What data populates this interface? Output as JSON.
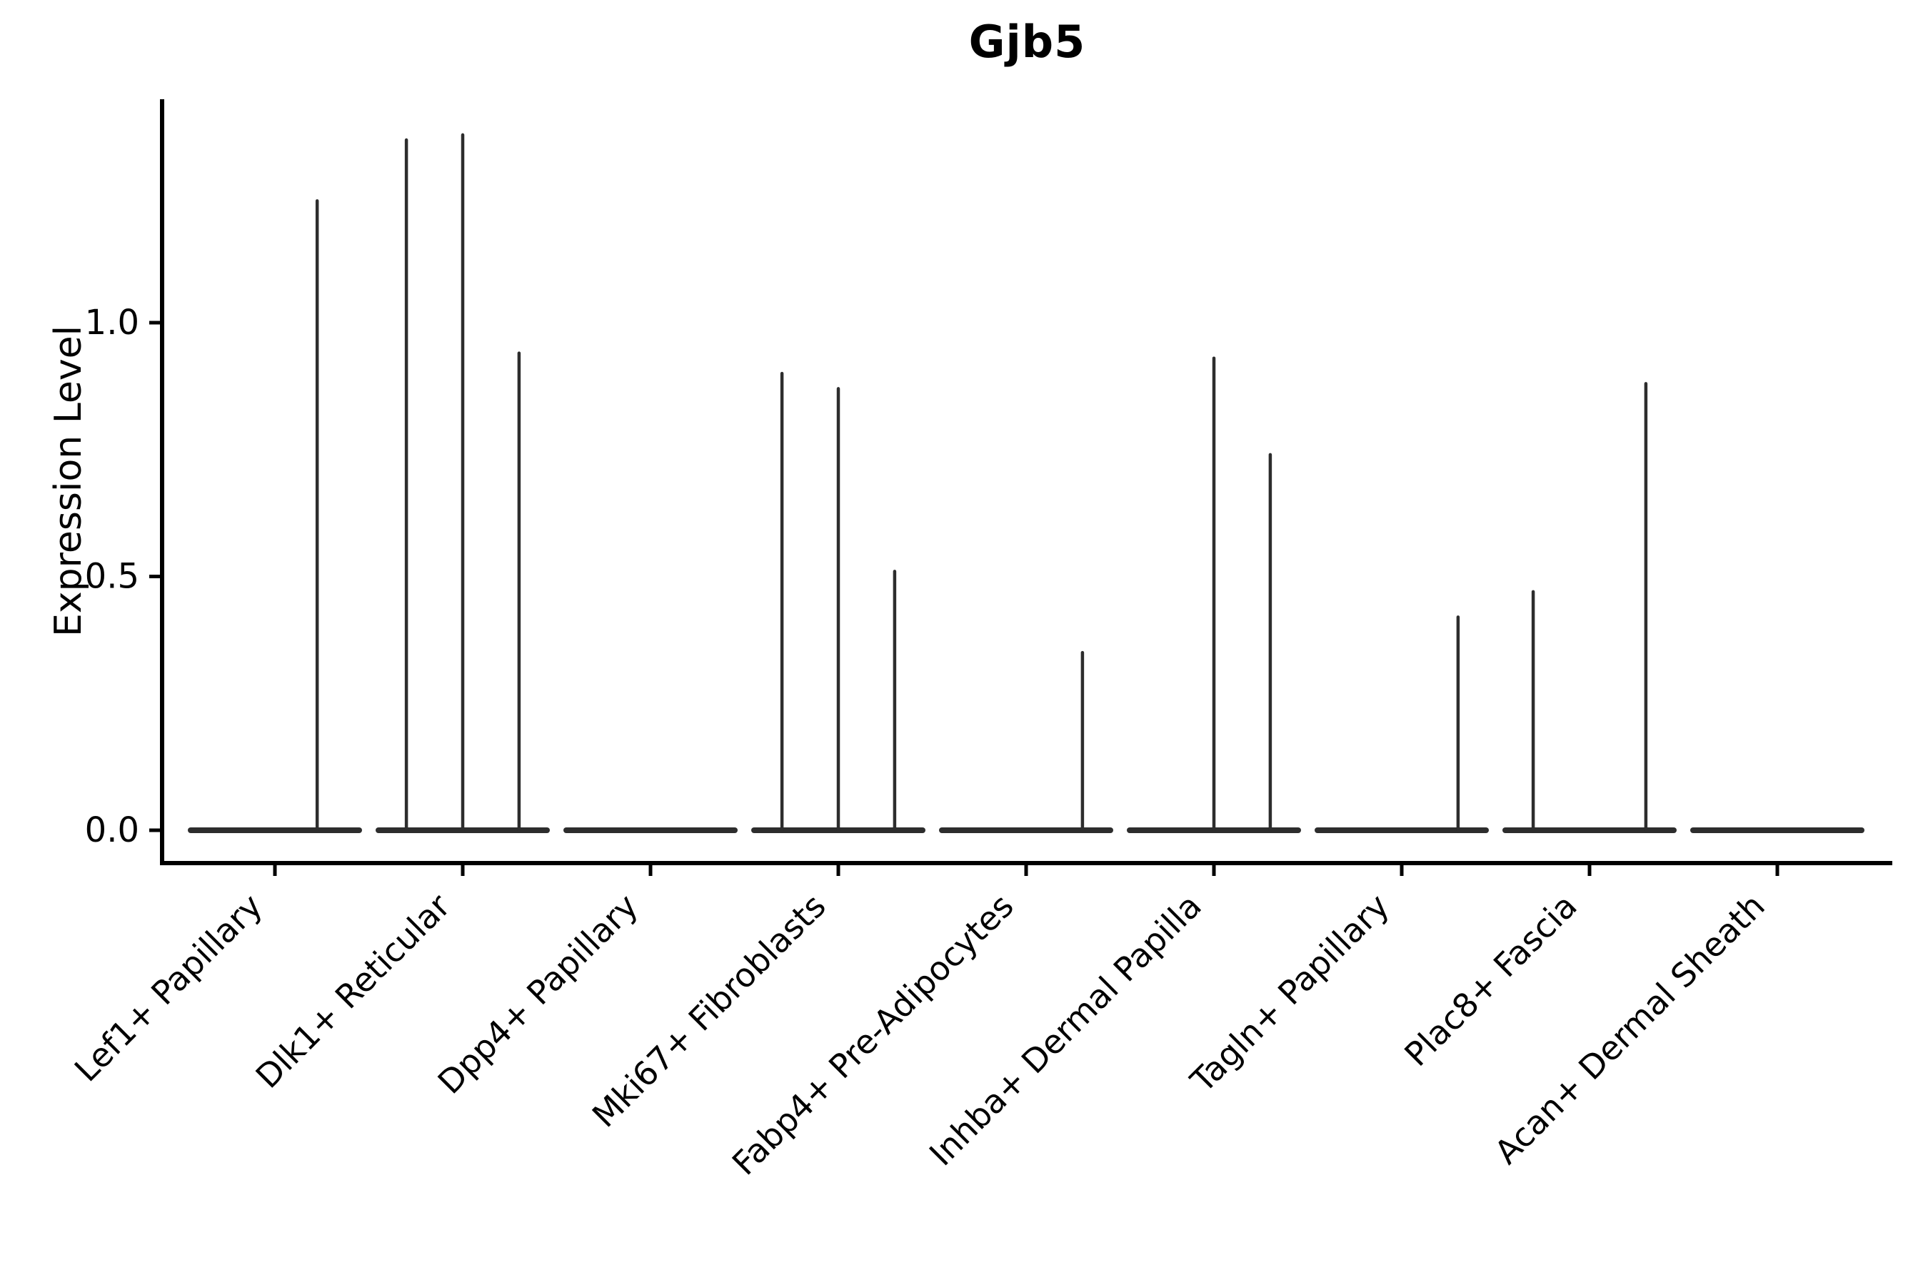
{
  "chart_data": {
    "type": "violin",
    "title": "Gjb5",
    "ylabel": "Expression Level",
    "yticks": [
      "0.0",
      "0.5",
      "1.0"
    ],
    "ytick_values": [
      0.0,
      0.5,
      1.0
    ],
    "ylim": [
      -0.065,
      1.44
    ],
    "x_rotation_degrees": 45,
    "grid": "off",
    "legend": "none",
    "violin_color": "#2d2d2d",
    "axis_color": "#000000",
    "group_body_halfwidth_units": 0.45,
    "categories": [
      "Lef1+ Papillary",
      "Dlk1+ Reticular",
      "Dpp4+ Papillary",
      "Mki67+ Fibroblasts",
      "Fabp4+ Pre-Adipocytes",
      "Inhba+ Dermal Papilla",
      "Tagln+ Papillary",
      "Plac8+ Fascia",
      "Acan+ Dermal Sheath"
    ],
    "violins": [
      {
        "category": "Lef1+ Papillary",
        "spikes": [
          {
            "offset": 0.225,
            "max": 1.24
          }
        ]
      },
      {
        "category": "Dlk1+ Reticular",
        "spikes": [
          {
            "offset": -0.3,
            "max": 1.36
          },
          {
            "offset": 0.0,
            "max": 1.37
          },
          {
            "offset": 0.3,
            "max": 0.94
          }
        ]
      },
      {
        "category": "Dpp4+ Papillary",
        "spikes": []
      },
      {
        "category": "Mki67+ Fibroblasts",
        "spikes": [
          {
            "offset": -0.3,
            "max": 0.9
          },
          {
            "offset": 0.0,
            "max": 0.87
          },
          {
            "offset": 0.3,
            "max": 0.51
          }
        ]
      },
      {
        "category": "Fabp4+ Pre-Adipocytes",
        "spikes": [
          {
            "offset": 0.3,
            "max": 0.35
          }
        ]
      },
      {
        "category": "Inhba+ Dermal Papilla",
        "spikes": [
          {
            "offset": 0.0,
            "max": 0.93
          },
          {
            "offset": 0.3,
            "max": 0.74
          }
        ]
      },
      {
        "category": "Tagln+ Papillary",
        "spikes": [
          {
            "offset": 0.3,
            "max": 0.42
          }
        ]
      },
      {
        "category": "Plac8+ Fascia",
        "spikes": [
          {
            "offset": -0.3,
            "max": 0.47
          },
          {
            "offset": 0.3,
            "max": 0.88
          }
        ]
      },
      {
        "category": "Acan+ Dermal Sheath",
        "spikes": []
      }
    ]
  }
}
